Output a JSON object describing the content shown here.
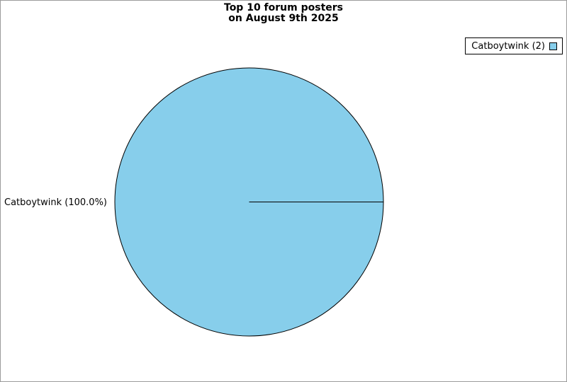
{
  "window": {
    "background_color": "#ffffff",
    "frame_border_color": "#9b9b9b"
  },
  "title": {
    "line1": "Top 10 forum posters",
    "line2": "on August 9th 2025"
  },
  "legend": {
    "position": "top-right",
    "items": [
      {
        "label": "Catboytwink (2)",
        "swatch_color": "#87CEEB",
        "swatch_border_color": "#000000"
      }
    ]
  },
  "chart_data": {
    "type": "pie",
    "title": "Top 10 forum posters on August 9th 2025",
    "slices": [
      {
        "label": "Catboytwink",
        "value": 2,
        "percent": 100.0,
        "display_label": "Catboytwink (100.0%)",
        "color": "#87CEEB",
        "edge_color": "#000000"
      }
    ],
    "start_angle_deg": 0,
    "legend_position": "top-right",
    "legend_entries": [
      "Catboytwink (2)"
    ]
  }
}
